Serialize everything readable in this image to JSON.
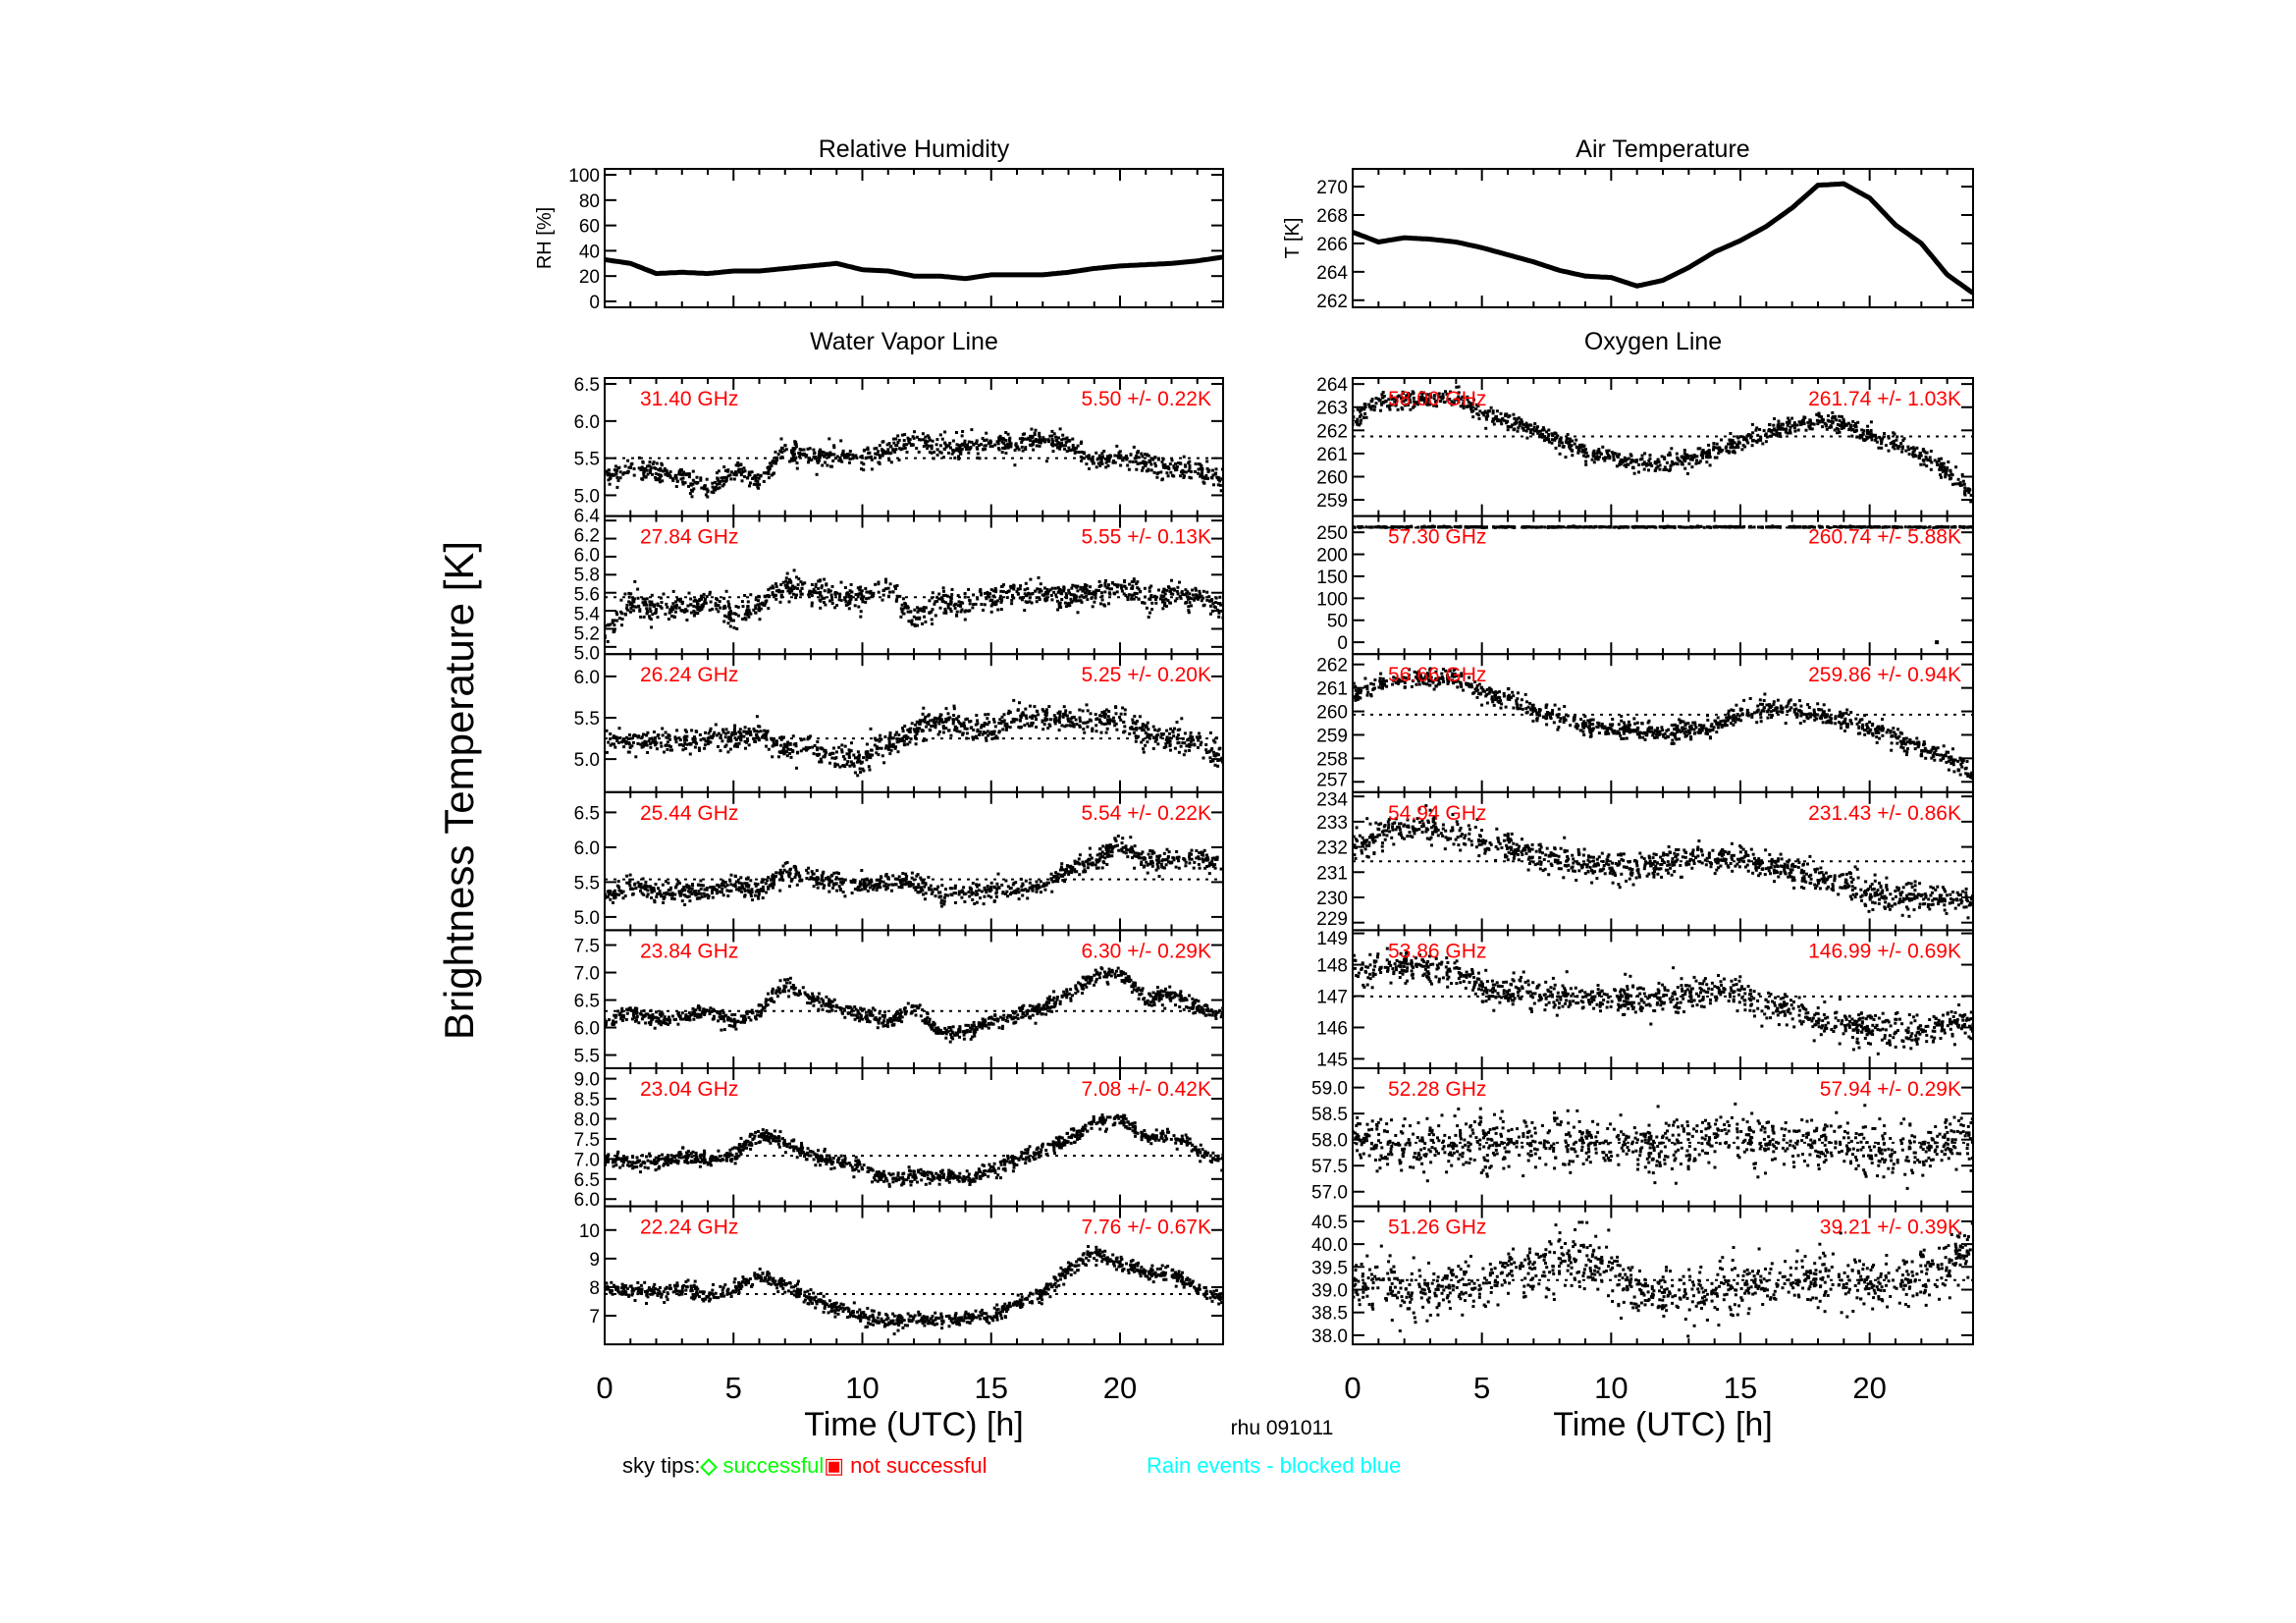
{
  "figure": {
    "ylabel": "Brightness Temperature [K]",
    "xlabel": "Time (UTC) [h]",
    "station_date": "rhu 091011",
    "column_titles": [
      "Water Vapor Line",
      "Oxygen Line"
    ],
    "legend": {
      "prefix": "sky tips:",
      "successful_symbol": "◇",
      "successful": " successful",
      "not_successful_symbol": "▣",
      "not_successful": " not successful",
      "rain": "Rain events - blocked blue"
    },
    "colors": {
      "data": "#000000",
      "annotation": "#ff0000",
      "successful": "#00ff00",
      "not_successful": "#ff0000",
      "rain": "#00ffff"
    }
  },
  "chart_data": [
    {
      "type": "line",
      "title": "Relative Humidity",
      "ylabel": "RH [%]",
      "xlim": [
        0,
        24
      ],
      "ylim": [
        -4.7,
        104.7
      ],
      "yticks": [
        "0",
        "20",
        "40",
        "60",
        "80",
        "100"
      ],
      "x": [
        0,
        1,
        2,
        3,
        4,
        5,
        6,
        7,
        8,
        9,
        10,
        11,
        12,
        13,
        14,
        15,
        16,
        17,
        18,
        19,
        20,
        21,
        22,
        23,
        24
      ],
      "y": [
        33,
        30,
        22,
        23,
        22,
        24,
        24,
        26,
        28,
        30,
        25,
        24,
        20,
        20,
        18,
        21,
        21,
        21,
        23,
        26,
        28,
        29,
        30,
        32,
        35
      ]
    },
    {
      "type": "line",
      "title": "Air Temperature",
      "ylabel": "T [K]",
      "xlim": [
        0,
        24
      ],
      "ylim": [
        261.5,
        271.25
      ],
      "yticks": [
        "262",
        "264",
        "266",
        "268",
        "270"
      ],
      "x": [
        0,
        1,
        2,
        3,
        4,
        5,
        6,
        7,
        8,
        9,
        10,
        11,
        12,
        13,
        14,
        15,
        16,
        17,
        18,
        19,
        20,
        21,
        22,
        23,
        24
      ],
      "y": [
        266.8,
        266.1,
        266.4,
        266.3,
        266.1,
        265.7,
        265.2,
        264.7,
        264.1,
        263.7,
        263.6,
        263.0,
        263.4,
        264.3,
        265.4,
        266.2,
        267.2,
        268.5,
        270.1,
        270.2,
        269.2,
        267.3,
        266.0,
        263.8,
        262.5
      ]
    },
    {
      "type": "scatter",
      "label": "31.40 GHz",
      "stats": "5.50 +/-  0.22K",
      "mean": 5.5,
      "xlim": [
        0,
        24
      ],
      "ylim": [
        4.72,
        6.58
      ],
      "yticks": [
        "5.0",
        "5.5",
        "6.0",
        "6.5"
      ],
      "y": [
        5.25,
        5.35,
        5.3,
        5.25,
        5.1,
        5.35,
        5.2,
        5.6,
        5.55,
        5.55,
        5.5,
        5.6,
        5.75,
        5.65,
        5.65,
        5.7,
        5.7,
        5.75,
        5.7,
        5.45,
        5.5,
        5.45,
        5.35,
        5.35,
        5.2
      ]
    },
    {
      "type": "scatter",
      "label": "27.84 GHz",
      "stats": "5.55 +/-  0.13K",
      "mean": 5.55,
      "xlim": [
        0,
        24
      ],
      "ylim": [
        4.92,
        6.45
      ],
      "yticks": [
        "5.0",
        "5.2",
        "5.4",
        "5.6",
        "5.8",
        "6.0",
        "6.2",
        "6.4"
      ],
      "y": [
        5.1,
        5.5,
        5.4,
        5.45,
        5.5,
        5.35,
        5.45,
        5.7,
        5.6,
        5.6,
        5.55,
        5.65,
        5.3,
        5.5,
        5.45,
        5.55,
        5.6,
        5.6,
        5.55,
        5.6,
        5.65,
        5.55,
        5.6,
        5.55,
        5.45
      ]
    },
    {
      "type": "scatter",
      "label": "26.24 GHz",
      "stats": "5.25 +/-  0.20K",
      "mean": 5.25,
      "xlim": [
        0,
        24
      ],
      "ylim": [
        4.6,
        6.27
      ],
      "yticks": [
        "5.0",
        "5.5",
        "6.0"
      ],
      "y": [
        5.2,
        5.25,
        5.2,
        5.2,
        5.25,
        5.25,
        5.3,
        5.1,
        5.15,
        5.0,
        5.0,
        5.2,
        5.35,
        5.45,
        5.4,
        5.35,
        5.5,
        5.5,
        5.5,
        5.45,
        5.5,
        5.3,
        5.25,
        5.2,
        5.0
      ]
    },
    {
      "type": "scatter",
      "label": "25.44 GHz",
      "stats": "5.54 +/-  0.22K",
      "mean": 5.54,
      "xlim": [
        0,
        24
      ],
      "ylim": [
        4.81,
        6.79
      ],
      "yticks": [
        "5.0",
        "5.5",
        "6.0",
        "6.5"
      ],
      "y": [
        5.25,
        5.45,
        5.35,
        5.35,
        5.35,
        5.45,
        5.4,
        5.65,
        5.55,
        5.5,
        5.45,
        5.5,
        5.5,
        5.3,
        5.35,
        5.35,
        5.4,
        5.45,
        5.65,
        5.8,
        6.05,
        5.8,
        5.8,
        5.85,
        5.75
      ]
    },
    {
      "type": "scatter",
      "label": "23.84 GHz",
      "stats": "6.30 +/-  0.29K",
      "mean": 6.3,
      "xlim": [
        0,
        24
      ],
      "ylim": [
        5.26,
        7.77
      ],
      "yticks": [
        "5.5",
        "6.0",
        "6.5",
        "7.0",
        "7.5"
      ],
      "y": [
        6.1,
        6.25,
        6.15,
        6.15,
        6.3,
        6.1,
        6.3,
        6.75,
        6.55,
        6.35,
        6.25,
        6.1,
        6.35,
        5.9,
        5.95,
        6.1,
        6.2,
        6.35,
        6.6,
        6.9,
        7.0,
        6.5,
        6.6,
        6.35,
        6.25
      ]
    },
    {
      "type": "scatter",
      "label": "23.04 GHz",
      "stats": "7.08 +/-  0.42K",
      "mean": 7.08,
      "xlim": [
        0,
        24
      ],
      "ylim": [
        5.82,
        9.26
      ],
      "yticks": [
        "6.0",
        "6.5",
        "7.0",
        "7.5",
        "8.0",
        "8.5",
        "9.0"
      ],
      "y": [
        7.0,
        6.9,
        6.9,
        7.1,
        6.95,
        7.1,
        7.6,
        7.4,
        7.1,
        6.95,
        6.75,
        6.5,
        6.6,
        6.6,
        6.5,
        6.7,
        7.0,
        7.2,
        7.5,
        7.9,
        8.0,
        7.5,
        7.6,
        7.2,
        6.9
      ]
    },
    {
      "type": "scatter",
      "label": "22.24 GHz",
      "stats": "7.76 +/-  0.67K",
      "mean": 7.76,
      "xlim": [
        0,
        24
      ],
      "ylim": [
        6.0,
        10.83
      ],
      "yticks": [
        "7",
        "8",
        "9",
        "10"
      ],
      "xticks": [
        "0",
        "5",
        "10",
        "15",
        "20"
      ],
      "y": [
        8.0,
        7.9,
        7.8,
        8.0,
        7.7,
        7.9,
        8.4,
        8.1,
        7.6,
        7.3,
        7.0,
        6.8,
        6.9,
        6.8,
        6.9,
        7.0,
        7.4,
        7.8,
        8.6,
        9.2,
        8.8,
        8.5,
        8.5,
        8.0,
        7.6
      ]
    },
    {
      "type": "scatter",
      "label": "58.00 GHz",
      "stats": "261.74 +/-  1.03K",
      "mean": 261.74,
      "xlim": [
        0,
        24
      ],
      "ylim": [
        258.3,
        264.26
      ],
      "yticks": [
        "259",
        "260",
        "261",
        "262",
        "263",
        "264"
      ],
      "y": [
        262.5,
        263.2,
        263.3,
        263.3,
        263.4,
        262.8,
        262.4,
        262.0,
        261.5,
        261.1,
        260.8,
        260.6,
        260.6,
        260.8,
        261.1,
        261.5,
        261.9,
        262.2,
        262.4,
        262.2,
        261.8,
        261.4,
        260.9,
        260.2,
        259.2
      ]
    },
    {
      "type": "scatter",
      "label": "57.30 GHz",
      "stats": "260.74 +/-  5.88K",
      "mean": 260.74,
      "xlim": [
        0,
        24
      ],
      "ylim": [
        -27,
        287
      ],
      "yticks": [
        "0",
        "50",
        "100",
        "150",
        "200",
        "250"
      ],
      "y": [
        262,
        262,
        262,
        262,
        262,
        262,
        262,
        262,
        262,
        262,
        262,
        262,
        262,
        262,
        262,
        262,
        262,
        262,
        262,
        262,
        262,
        262,
        262,
        262,
        262
      ],
      "outliers": [
        [
          22.6,
          0
        ]
      ]
    },
    {
      "type": "scatter",
      "label": "56.66 GHz",
      "stats": "259.86 +/-  0.94K",
      "mean": 259.86,
      "xlim": [
        0,
        24
      ],
      "ylim": [
        256.56,
        262.44
      ],
      "yticks": [
        "257",
        "258",
        "259",
        "260",
        "261",
        "262"
      ],
      "y": [
        260.6,
        261.2,
        261.4,
        261.4,
        261.4,
        260.8,
        260.5,
        260.1,
        259.7,
        259.4,
        259.2,
        259.2,
        259.1,
        259.2,
        259.4,
        259.9,
        260.1,
        260.1,
        259.9,
        259.6,
        259.3,
        258.9,
        258.4,
        258.0,
        257.3
      ]
    },
    {
      "type": "scatter",
      "label": "54.94 GHz",
      "stats": "231.43 +/-  0.86K",
      "mean": 231.43,
      "xlim": [
        0,
        24
      ],
      "ylim": [
        228.7,
        234.17
      ],
      "yticks": [
        "229",
        "230",
        "231",
        "232",
        "233",
        "234"
      ],
      "y": [
        232.0,
        232.5,
        232.7,
        232.8,
        232.6,
        232.2,
        231.9,
        231.7,
        231.5,
        231.3,
        231.2,
        231.2,
        231.4,
        231.6,
        231.6,
        231.5,
        231.3,
        231.0,
        230.8,
        230.5,
        230.2,
        230.0,
        230.0,
        229.9,
        229.9
      ]
    },
    {
      "type": "scatter",
      "label": "53.86 GHz",
      "stats": "146.99 +/-  0.69K",
      "mean": 146.99,
      "xlim": [
        0,
        24
      ],
      "ylim": [
        144.7,
        149.1
      ],
      "yticks": [
        "145",
        "146",
        "147",
        "148",
        "149"
      ],
      "y": [
        147.8,
        147.9,
        147.9,
        147.9,
        147.8,
        147.3,
        147.1,
        147.1,
        147.0,
        146.9,
        146.9,
        146.9,
        146.9,
        147.0,
        147.2,
        147.0,
        146.7,
        146.5,
        146.3,
        146.1,
        145.9,
        145.9,
        145.9,
        146.1,
        146.1
      ]
    },
    {
      "type": "scatter",
      "label": "52.28 GHz",
      "stats": "57.94 +/-  0.29K",
      "mean": 57.94,
      "xlim": [
        0,
        24
      ],
      "ylim": [
        56.72,
        59.37
      ],
      "yticks": [
        "57.0",
        "57.5",
        "58.0",
        "58.5",
        "59.0"
      ],
      "y": [
        58.0,
        57.9,
        57.85,
        57.9,
        57.85,
        57.95,
        57.9,
        57.95,
        57.9,
        57.95,
        57.85,
        57.9,
        57.9,
        57.95,
        58.0,
        58.05,
        58.0,
        57.95,
        57.9,
        57.85,
        57.8,
        57.8,
        57.8,
        57.95,
        58.1
      ]
    },
    {
      "type": "scatter",
      "label": "51.26 GHz",
      "stats": "39.21 +/-  0.39K",
      "mean": 39.21,
      "xlim": [
        0,
        24
      ],
      "ylim": [
        37.8,
        40.83
      ],
      "yticks": [
        "38.0",
        "38.5",
        "39.0",
        "39.5",
        "40.0",
        "40.5"
      ],
      "xticks": [
        "0",
        "5",
        "10",
        "15",
        "20"
      ],
      "y": [
        39.0,
        39.2,
        39.0,
        39.0,
        39.1,
        39.2,
        39.4,
        39.5,
        39.6,
        39.6,
        39.5,
        38.9,
        38.9,
        38.9,
        39.0,
        39.1,
        39.1,
        39.2,
        39.3,
        39.2,
        39.1,
        39.1,
        39.2,
        39.5,
        39.9
      ]
    }
  ]
}
